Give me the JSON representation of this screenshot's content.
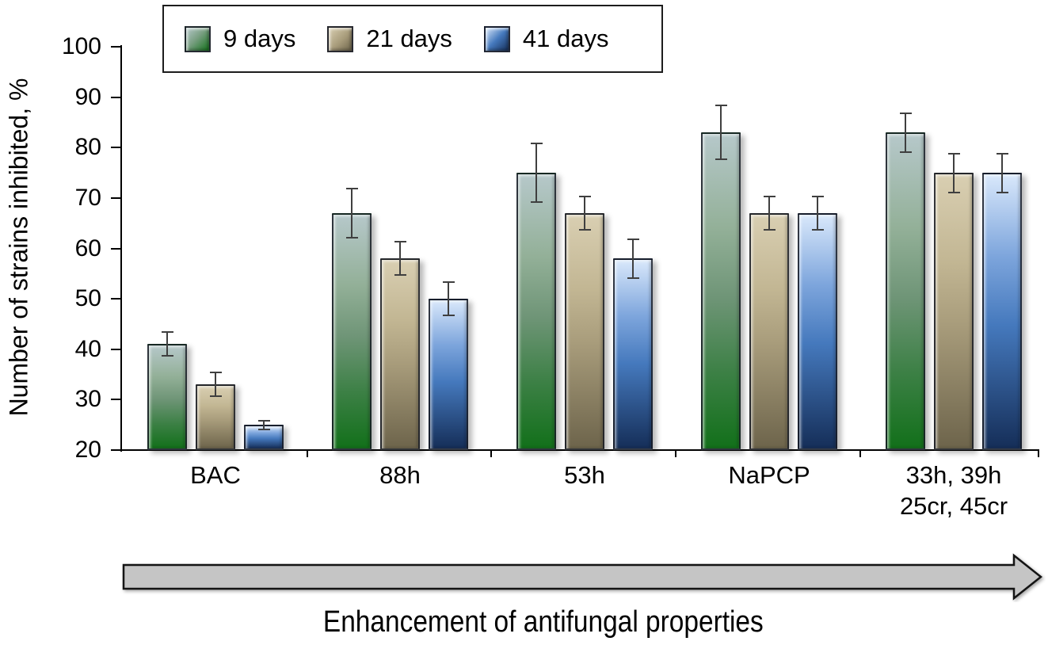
{
  "chart_data": {
    "type": "bar",
    "title": "",
    "ylabel": "Number of strains inhibited, %",
    "xlabel": "",
    "annotation": "Enhancement of antifungal properties",
    "ylim": [
      20,
      100
    ],
    "yticks": [
      100,
      90,
      80,
      70,
      60,
      50,
      40,
      30,
      20
    ],
    "grid": false,
    "legend_position": "top-left",
    "categories": [
      "BAC",
      "88h",
      "53h",
      "NaPCP",
      "33h, 39h\n25cr, 45cr"
    ],
    "series": [
      {
        "name": "9 days",
        "color_key": "green",
        "values": [
          41,
          67,
          75,
          83,
          83
        ],
        "errors": [
          2.5,
          5,
          6,
          5.5,
          4
        ]
      },
      {
        "name": "21 days",
        "color_key": "tan",
        "values": [
          33,
          58,
          67,
          67,
          75
        ],
        "errors": [
          2.5,
          3.5,
          3.5,
          3.5,
          4
        ]
      },
      {
        "name": "41 days",
        "color_key": "blue",
        "values": [
          25,
          50,
          58,
          67,
          75
        ],
        "errors": [
          1,
          3.5,
          4,
          3.5,
          4
        ]
      }
    ]
  },
  "colors": {
    "green_top": "#b6c8ca",
    "green_mid": "#6f9577",
    "green_bottom": "#12701a",
    "tan_top": "#d9cfb2",
    "tan_mid": "#a89c7b",
    "tan_bottom": "#6d644b",
    "blue_top": "#d9e8fb",
    "blue_mid": "#4579bd",
    "blue_bottom": "#152e58",
    "axis": "#000000",
    "error_bar": "#3f3f3f",
    "arrow_fill": "#c5c5c5",
    "arrow_outline": "#141414",
    "background": "#ffffff"
  }
}
